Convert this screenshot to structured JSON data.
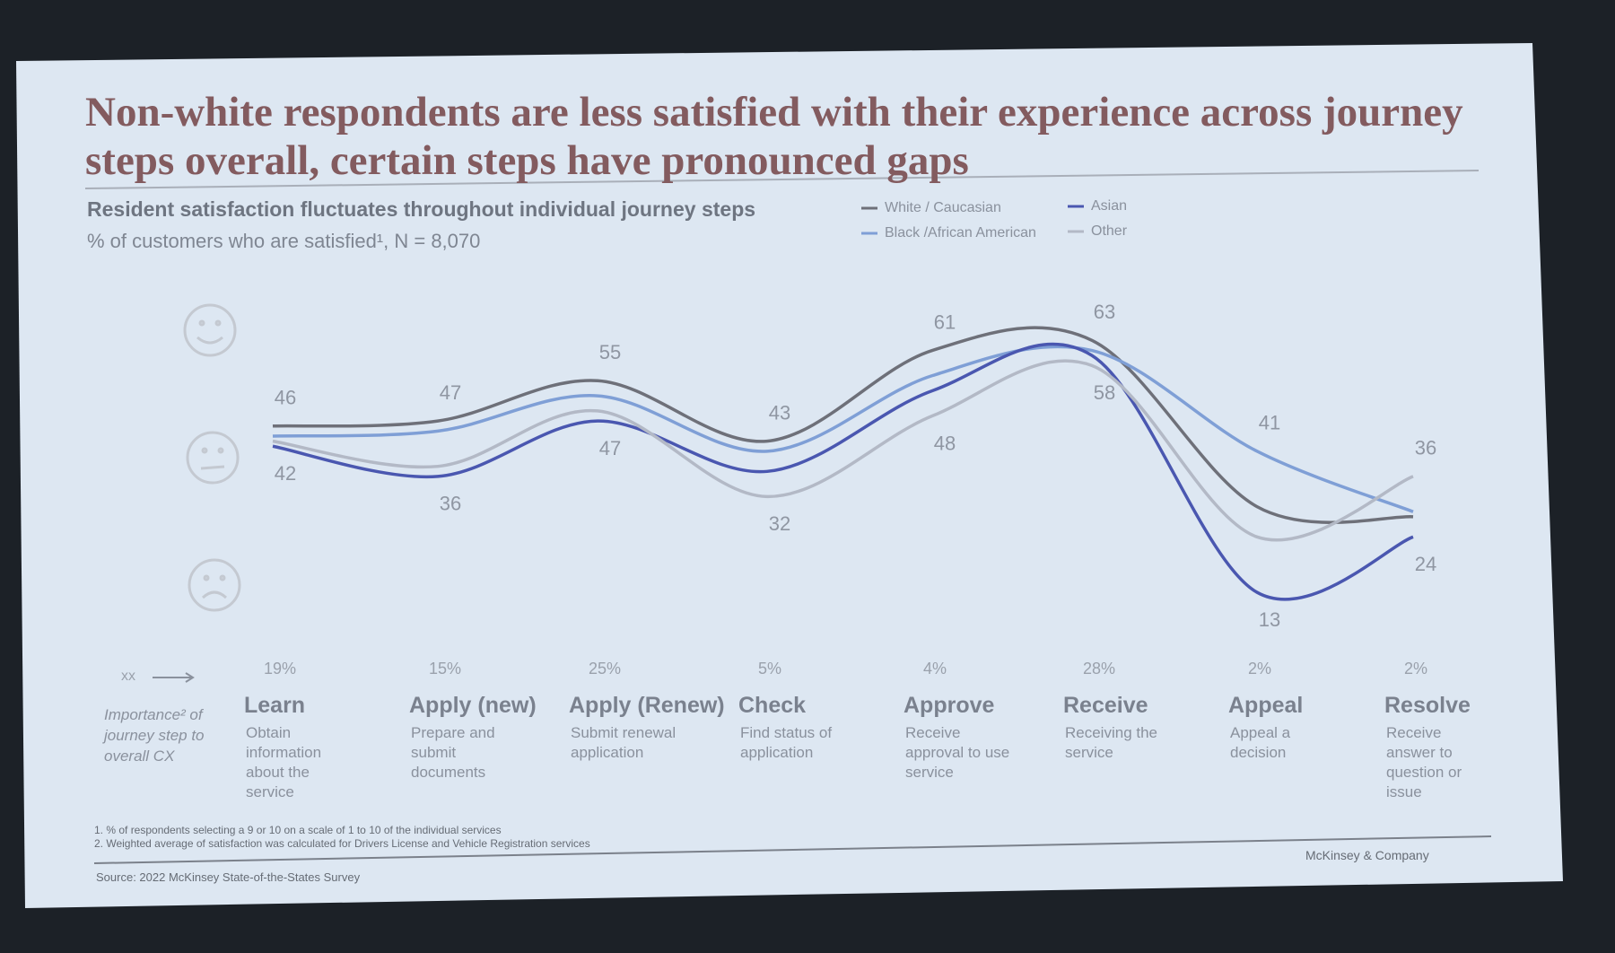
{
  "chart_data": {
    "type": "line",
    "title": "Non-white respondents are less satisfied with their experience across journey steps overall, certain steps have pronounced gaps",
    "subtitle": "Resident satisfaction fluctuates throughout individual journey steps",
    "y_label": "% of customers who are satisfied¹, N = 8,070",
    "categories": [
      "Learn",
      "Apply (new)",
      "Apply (Renew)",
      "Check",
      "Approve",
      "Receive",
      "Appeal",
      "Resolve"
    ],
    "descriptions": [
      "Obtain information about the service",
      "Prepare and submit documents",
      "Submit renewal application",
      "Find status of application",
      "Receive approval to use service",
      "Receiving the service",
      "Appeal a decision",
      "Receive answer to question or issue"
    ],
    "importance_labels": [
      "19%",
      "15%",
      "25%",
      "5%",
      "4%",
      "28%",
      "2%",
      "2%"
    ],
    "importance_key": "xx",
    "importance_caption": "Importance² of journey step to overall CX",
    "series": [
      {
        "name": "White / Caucasian",
        "color": "#6e7079",
        "values": [
          46,
          47,
          55,
          43,
          61,
          63,
          30,
          28
        ],
        "value_labels": [
          "46",
          "47",
          "55",
          "43",
          "61",
          "63",
          null,
          null
        ]
      },
      {
        "name": "Black /African American",
        "color": "#7f9fd6",
        "values": [
          44,
          45,
          52,
          41,
          56,
          61,
          41,
          29
        ],
        "value_labels": [
          null,
          null,
          null,
          null,
          null,
          null,
          "41",
          null
        ]
      },
      {
        "name": "Asian",
        "color": "#4a57b0",
        "values": [
          42,
          36,
          47,
          37,
          53,
          60,
          13,
          24
        ],
        "value_labels": [
          "42",
          "36",
          "47",
          null,
          null,
          null,
          "13",
          "24"
        ]
      },
      {
        "name": "Other",
        "color": "#b3b9c6",
        "values": [
          43,
          38,
          49,
          32,
          48,
          58,
          24,
          36
        ],
        "value_labels": [
          null,
          null,
          null,
          "32",
          "48",
          "58",
          null,
          "36"
        ]
      }
    ],
    "ylim": [
      5,
      70
    ],
    "footnotes": [
      "1.   % of respondents selecting a 9 or 10 on a scale of 1 to 10 of the individual services",
      "2.   Weighted average of satisfaction was calculated for Drivers License and Vehicle Registration services"
    ],
    "source": "Source: 2022 McKinsey State-of-the-States Survey",
    "brand": "McKinsey & Company"
  }
}
